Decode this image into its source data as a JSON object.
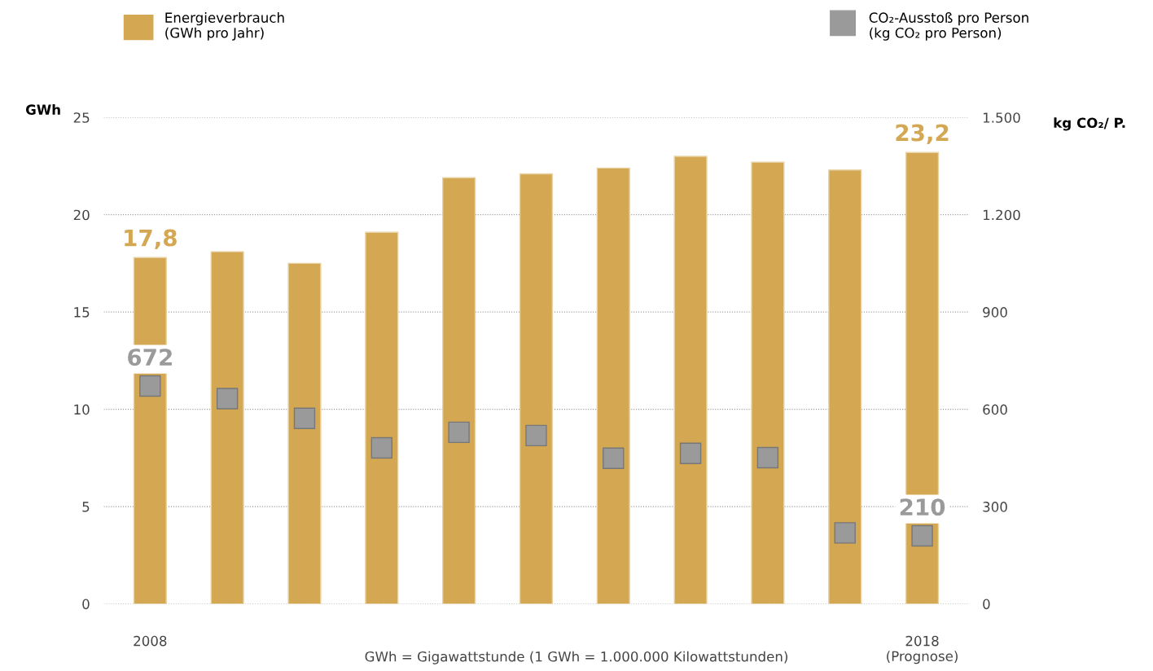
{
  "chart_data": {
    "type": "bar",
    "categories": [
      "2008",
      null,
      null,
      null,
      null,
      null,
      null,
      null,
      null,
      null,
      "2018\n(Prognose)"
    ],
    "series": [
      {
        "name": "Energieverbrauch\n(GWh pro Jahr)",
        "color": "#d4a853",
        "values": [
          17.8,
          18.1,
          17.5,
          19.1,
          21.9,
          22.1,
          22.4,
          23.0,
          22.7,
          22.3,
          23.2
        ],
        "value_labels": [
          "17,8",
          null,
          null,
          null,
          null,
          null,
          null,
          null,
          null,
          null,
          "23,2"
        ]
      },
      {
        "name": "CO₂-Ausstoß pro Person\n(kg CO₂ pro Person)",
        "type": "scatter",
        "axis": "y2",
        "marker": "square",
        "color": "#9a9a9a",
        "values": [
          672,
          633,
          572,
          481,
          529,
          519,
          449,
          464,
          451,
          219,
          210
        ],
        "value_labels": [
          "672",
          null,
          null,
          null,
          null,
          null,
          null,
          null,
          null,
          null,
          "210"
        ]
      }
    ],
    "ylabel": "GWh",
    "y2label": "kg CO₂/ P.",
    "ylim": [
      0,
      25
    ],
    "yticks": [
      0,
      5,
      10,
      15,
      20,
      25
    ],
    "y2lim": [
      0,
      1500
    ],
    "y2ticks": [
      0,
      300,
      600,
      900,
      {
        "value": 1200,
        "label": "1.200"
      },
      {
        "value": 1500,
        "label": "1.500"
      }
    ],
    "grid": "y",
    "legend": "top",
    "annotations": [
      "GWh = Gigawattstunde (1 GWh = 1.000.000 Kilowattstunden)"
    ]
  }
}
